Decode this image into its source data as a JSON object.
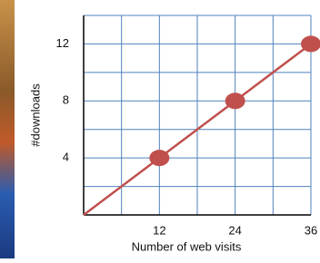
{
  "chart_data": {
    "type": "line",
    "x_label": "Number of web visits",
    "y_label": "#downloads",
    "x": [
      0,
      12,
      24,
      36
    ],
    "series": [
      {
        "color": "#c0504d",
        "values": [
          0,
          4,
          8,
          12
        ],
        "markers": [
          false,
          true,
          true,
          true
        ]
      }
    ],
    "xlim": [
      0,
      36
    ],
    "xticks": [
      12,
      24,
      36
    ],
    "x_minor_grid": [
      6,
      18,
      30
    ],
    "ylim": [
      0,
      14
    ],
    "yticks": [
      4,
      8,
      12
    ],
    "y_minor_grid": [
      2,
      6,
      10,
      14
    ],
    "grid": true,
    "grid_color": "#4f81bd"
  }
}
